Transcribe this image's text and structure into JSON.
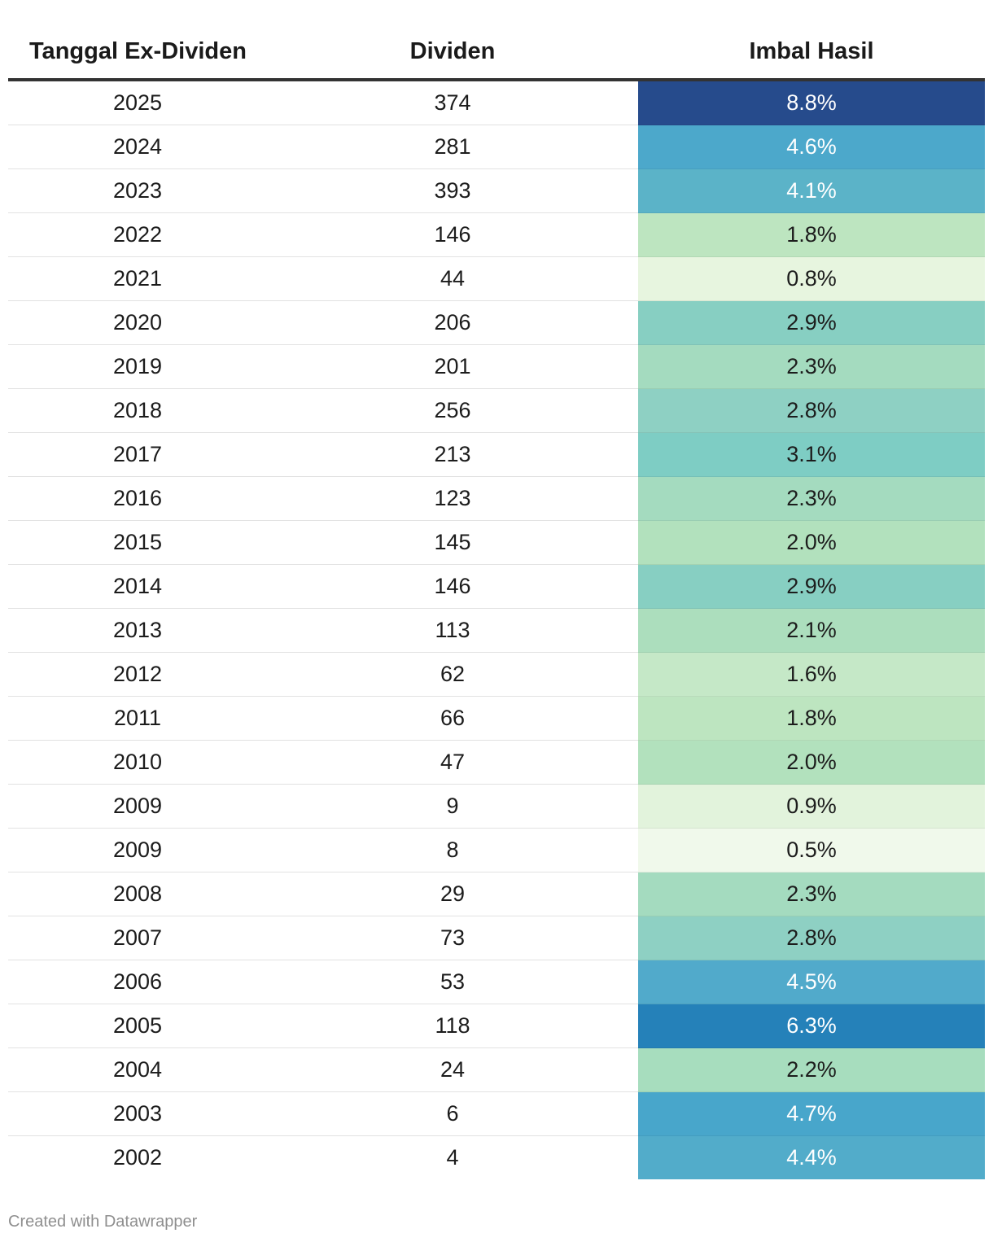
{
  "chart_data": {
    "type": "table",
    "columns": [
      "Tanggal Ex-Dividen",
      "Dividen",
      "Imbal Hasil"
    ],
    "rows": [
      {
        "date": "2025",
        "dividend": "374",
        "yield": "8.8%",
        "yield_value": 8.8,
        "color": "#264b8c",
        "text_color": "#ffffff"
      },
      {
        "date": "2024",
        "dividend": "281",
        "yield": "4.6%",
        "yield_value": 4.6,
        "color": "#4ca8cb",
        "text_color": "#ffffff"
      },
      {
        "date": "2023",
        "dividend": "393",
        "yield": "4.1%",
        "yield_value": 4.1,
        "color": "#5bb3c8",
        "text_color": "#ffffff"
      },
      {
        "date": "2022",
        "dividend": "146",
        "yield": "1.8%",
        "yield_value": 1.8,
        "color": "#bde5c0",
        "text_color": "#1c1c1c"
      },
      {
        "date": "2021",
        "dividend": "44",
        "yield": "0.8%",
        "yield_value": 0.8,
        "color": "#e7f5df",
        "text_color": "#1c1c1c"
      },
      {
        "date": "2020",
        "dividend": "206",
        "yield": "2.9%",
        "yield_value": 2.9,
        "color": "#87cfc2",
        "text_color": "#1c1c1c"
      },
      {
        "date": "2019",
        "dividend": "201",
        "yield": "2.3%",
        "yield_value": 2.3,
        "color": "#a4dbbf",
        "text_color": "#1c1c1c"
      },
      {
        "date": "2018",
        "dividend": "256",
        "yield": "2.8%",
        "yield_value": 2.8,
        "color": "#8ed0c3",
        "text_color": "#1c1c1c"
      },
      {
        "date": "2017",
        "dividend": "213",
        "yield": "3.1%",
        "yield_value": 3.1,
        "color": "#7ecdc4",
        "text_color": "#1c1c1c"
      },
      {
        "date": "2016",
        "dividend": "123",
        "yield": "2.3%",
        "yield_value": 2.3,
        "color": "#a4dbbf",
        "text_color": "#1c1c1c"
      },
      {
        "date": "2015",
        "dividend": "145",
        "yield": "2.0%",
        "yield_value": 2.0,
        "color": "#b2e1bd",
        "text_color": "#1c1c1c"
      },
      {
        "date": "2014",
        "dividend": "146",
        "yield": "2.9%",
        "yield_value": 2.9,
        "color": "#87cfc2",
        "text_color": "#1c1c1c"
      },
      {
        "date": "2013",
        "dividend": "113",
        "yield": "2.1%",
        "yield_value": 2.1,
        "color": "#acdebd",
        "text_color": "#1c1c1c"
      },
      {
        "date": "2012",
        "dividend": "62",
        "yield": "1.6%",
        "yield_value": 1.6,
        "color": "#c5e8c7",
        "text_color": "#1c1c1c"
      },
      {
        "date": "2011",
        "dividend": "66",
        "yield": "1.8%",
        "yield_value": 1.8,
        "color": "#bde5c0",
        "text_color": "#1c1c1c"
      },
      {
        "date": "2010",
        "dividend": "47",
        "yield": "2.0%",
        "yield_value": 2.0,
        "color": "#b2e1bd",
        "text_color": "#1c1c1c"
      },
      {
        "date": "2009",
        "dividend": "9",
        "yield": "0.9%",
        "yield_value": 0.9,
        "color": "#e2f3dc",
        "text_color": "#1c1c1c"
      },
      {
        "date": "2009",
        "dividend": "8",
        "yield": "0.5%",
        "yield_value": 0.5,
        "color": "#f0f9eb",
        "text_color": "#1c1c1c"
      },
      {
        "date": "2008",
        "dividend": "29",
        "yield": "2.3%",
        "yield_value": 2.3,
        "color": "#a4dbbf",
        "text_color": "#1c1c1c"
      },
      {
        "date": "2007",
        "dividend": "73",
        "yield": "2.8%",
        "yield_value": 2.8,
        "color": "#8ed0c3",
        "text_color": "#1c1c1c"
      },
      {
        "date": "2006",
        "dividend": "53",
        "yield": "4.5%",
        "yield_value": 4.5,
        "color": "#51aacb",
        "text_color": "#ffffff"
      },
      {
        "date": "2005",
        "dividend": "118",
        "yield": "6.3%",
        "yield_value": 6.3,
        "color": "#2581b9",
        "text_color": "#ffffff"
      },
      {
        "date": "2004",
        "dividend": "24",
        "yield": "2.2%",
        "yield_value": 2.2,
        "color": "#a7ddbe",
        "text_color": "#1c1c1c"
      },
      {
        "date": "2003",
        "dividend": "6",
        "yield": "4.7%",
        "yield_value": 4.7,
        "color": "#48a6cb",
        "text_color": "#ffffff"
      },
      {
        "date": "2002",
        "dividend": "4",
        "yield": "4.4%",
        "yield_value": 4.4,
        "color": "#52acca",
        "text_color": "#ffffff"
      }
    ]
  },
  "footer": {
    "credit": "Created with Datawrapper"
  }
}
